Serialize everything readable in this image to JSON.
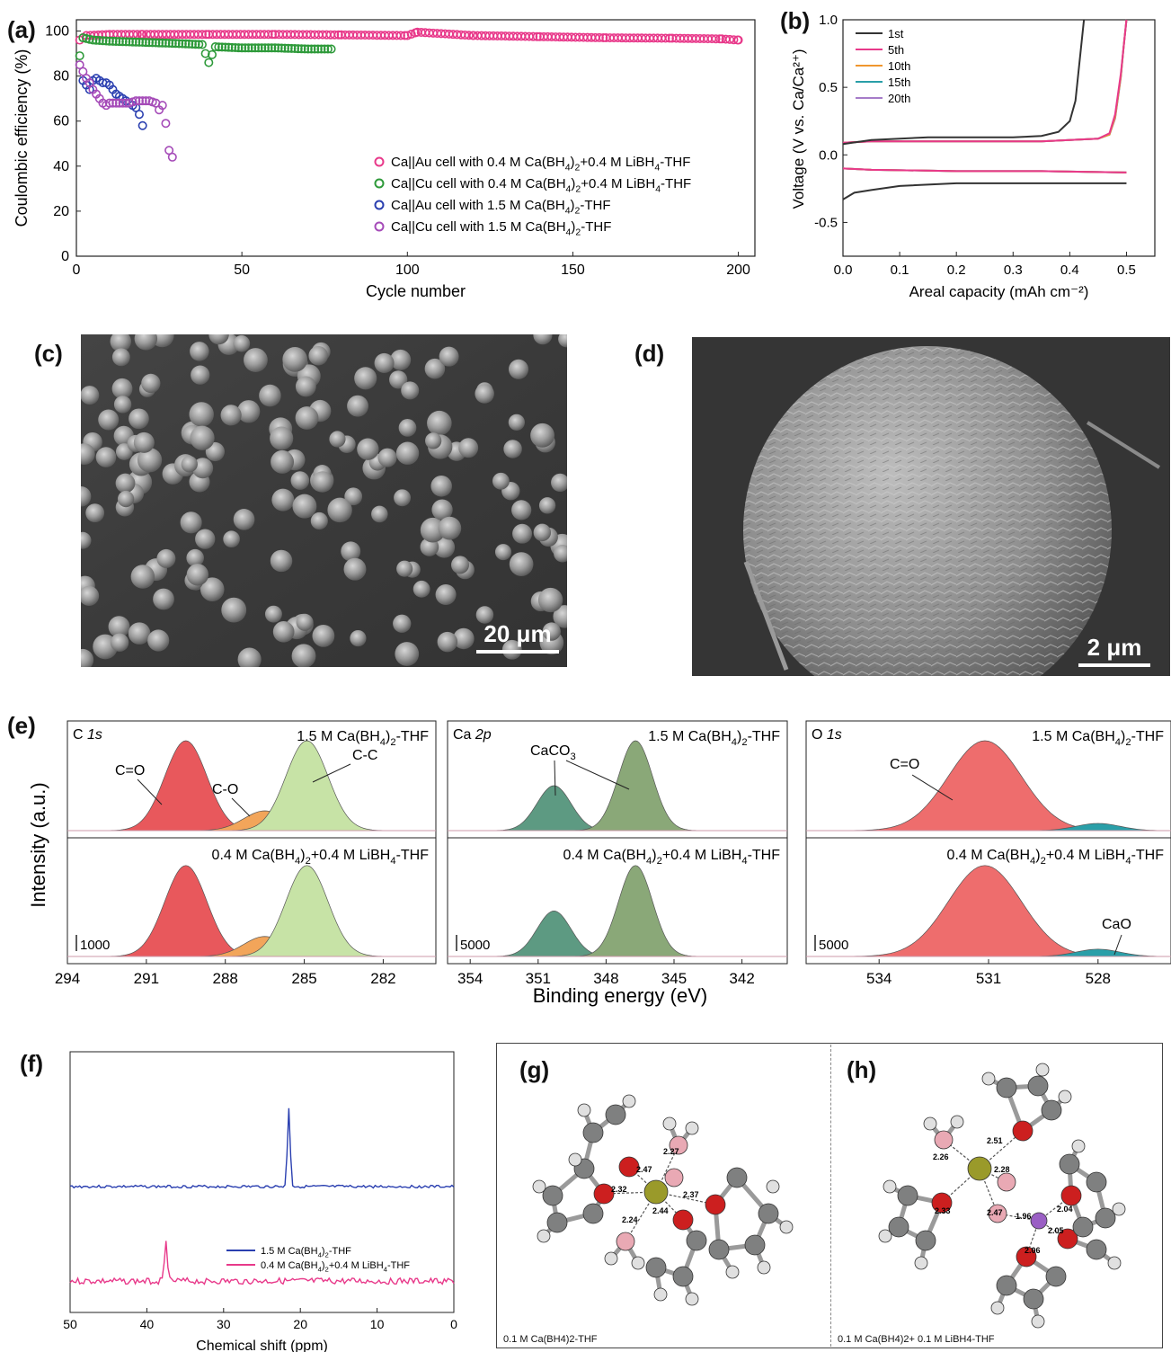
{
  "panels": {
    "a": "(a)",
    "b": "(b)",
    "c": "(c)",
    "d": "(d)",
    "e": "(e)",
    "f": "(f)",
    "g": "(g)",
    "h": "(h)"
  },
  "chart_data": [
    {
      "id": "a",
      "type": "scatter",
      "xlabel": "Cycle number",
      "ylabel": "Coulombic efficiency (%)",
      "xlim": [
        0,
        205
      ],
      "ylim": [
        0,
        105
      ],
      "xticks": [
        0,
        50,
        100,
        150,
        200
      ],
      "yticks": [
        0,
        20,
        40,
        60,
        80,
        100
      ],
      "legend_position": "lower-right",
      "series": [
        {
          "name": "Ca||Au cell with 0.4 M Ca(BH4)2+0.4 M LiBH4-THF",
          "color": "#e8398a",
          "x": [
            1,
            2,
            3,
            10,
            20,
            40,
            60,
            80,
            100,
            103,
            120,
            140,
            160,
            180,
            195,
            200
          ],
          "y": [
            96,
            97,
            98,
            98.5,
            98.5,
            98.5,
            98.5,
            98.3,
            98,
            99.5,
            98,
            97.5,
            97,
            96.8,
            96.5,
            96
          ]
        },
        {
          "name": "Ca||Cu cell with 0.4 M Ca(BH4)2+0.4 M LiBH4-THF",
          "color": "#2e9a3a",
          "x": [
            1,
            2,
            5,
            10,
            20,
            30,
            38,
            40,
            42,
            50,
            60,
            70,
            77
          ],
          "y": [
            89,
            97,
            96,
            95.5,
            95,
            94.5,
            94,
            86,
            93,
            92.5,
            92.5,
            92,
            92
          ]
        },
        {
          "name": "Ca||Au cell with 1.5 M Ca(BH4)2-THF",
          "color": "#2a3fb0",
          "x": [
            2,
            3,
            4,
            5,
            6,
            7,
            8,
            9,
            10,
            11,
            12,
            13,
            14,
            15,
            16,
            17,
            18,
            19,
            20
          ],
          "y": [
            78,
            76,
            74,
            78,
            79,
            78,
            77,
            77,
            76,
            74,
            72,
            71,
            70,
            69,
            68,
            67,
            66,
            63,
            58
          ]
        },
        {
          "name": "Ca||Cu cell with 1.5 M Ca(BH4)2-THF",
          "color": "#a54bb8",
          "x": [
            1,
            2,
            3,
            4,
            5,
            6,
            7,
            8,
            9,
            10,
            12,
            14,
            16,
            18,
            20,
            22,
            24,
            25,
            26,
            27,
            28,
            29
          ],
          "y": [
            85,
            82,
            79,
            77,
            74,
            72,
            70,
            68,
            67,
            68,
            68,
            68,
            68,
            69,
            69,
            69,
            68,
            65,
            67,
            59,
            47,
            44
          ]
        }
      ]
    },
    {
      "id": "b",
      "type": "line",
      "xlabel": "Areal capacity (mAh cm⁻²)",
      "ylabel": "Voltage (V vs. Ca/Ca²⁺)",
      "xlim": [
        0,
        0.55
      ],
      "ylim": [
        -0.75,
        1.0
      ],
      "xticks": [
        0.0,
        0.1,
        0.2,
        0.3,
        0.4,
        0.5
      ],
      "yticks": [
        -0.5,
        0.0,
        0.5,
        1.0
      ],
      "legend_position": "top-left",
      "series": [
        {
          "name": "1st",
          "color": "#333333",
          "charge_x": [
            0,
            0.05,
            0.15,
            0.25,
            0.3,
            0.35,
            0.38,
            0.4,
            0.41,
            0.415,
            0.42,
            0.425
          ],
          "charge_y": [
            0.08,
            0.11,
            0.13,
            0.13,
            0.13,
            0.14,
            0.17,
            0.25,
            0.4,
            0.6,
            0.8,
            1.0
          ],
          "discharge_x": [
            0,
            0.02,
            0.05,
            0.1,
            0.2,
            0.3,
            0.4,
            0.5
          ],
          "discharge_y": [
            -0.33,
            -0.28,
            -0.26,
            -0.23,
            -0.21,
            -0.21,
            -0.21,
            -0.21
          ]
        },
        {
          "name": "5th",
          "color": "#e8398a",
          "charge_x": [
            0,
            0.05,
            0.2,
            0.35,
            0.45,
            0.47,
            0.48,
            0.49,
            0.495,
            0.5
          ],
          "charge_y": [
            0.09,
            0.1,
            0.1,
            0.1,
            0.12,
            0.16,
            0.3,
            0.6,
            0.8,
            1.0
          ],
          "discharge_x": [
            0,
            0.05,
            0.2,
            0.35,
            0.5
          ],
          "discharge_y": [
            -0.1,
            -0.11,
            -0.12,
            -0.12,
            -0.13
          ]
        },
        {
          "name": "10th",
          "color": "#f0962e",
          "charge_x": [
            0,
            0.05,
            0.2,
            0.35,
            0.45,
            0.47,
            0.48,
            0.49,
            0.495,
            0.5
          ],
          "charge_y": [
            0.09,
            0.1,
            0.1,
            0.1,
            0.12,
            0.15,
            0.28,
            0.58,
            0.8,
            1.0
          ],
          "discharge_x": [
            0,
            0.05,
            0.2,
            0.35,
            0.5
          ],
          "discharge_y": [
            -0.1,
            -0.11,
            -0.12,
            -0.12,
            -0.13
          ]
        },
        {
          "name": "15th",
          "color": "#2a9fa8",
          "charge_x": [
            0,
            0.05,
            0.2,
            0.35,
            0.45,
            0.47,
            0.48,
            0.49,
            0.495,
            0.5
          ],
          "charge_y": [
            0.09,
            0.1,
            0.1,
            0.1,
            0.12,
            0.15,
            0.28,
            0.58,
            0.8,
            1.0
          ],
          "discharge_x": [
            0,
            0.05,
            0.2,
            0.35,
            0.5
          ],
          "discharge_y": [
            -0.1,
            -0.11,
            -0.12,
            -0.12,
            -0.13
          ]
        },
        {
          "name": "20th",
          "color": "#a67cc9",
          "charge_x": [
            0,
            0.05,
            0.2,
            0.35,
            0.45,
            0.47,
            0.48,
            0.49,
            0.495,
            0.5
          ],
          "charge_y": [
            0.09,
            0.1,
            0.1,
            0.1,
            0.12,
            0.15,
            0.27,
            0.57,
            0.8,
            1.0
          ],
          "discharge_x": [
            0,
            0.05,
            0.2,
            0.35,
            0.5
          ],
          "discharge_y": [
            -0.1,
            -0.11,
            -0.12,
            -0.12,
            -0.13
          ]
        }
      ]
    },
    {
      "id": "e",
      "type": "area",
      "ylabel": "Intensity (a.u.)",
      "xlabel": "Binding energy (eV)",
      "subplots": [
        {
          "element": "C",
          "orbital": "1s",
          "xlim": [
            294,
            280
          ],
          "xticks": [
            294,
            291,
            288,
            285,
            282
          ],
          "top_label": "1.5 M Ca(BH4)2-THF",
          "bottom_label": "0.4 M Ca(BH4)2+0.4 M LiBH4-THF",
          "scale_label": "1000",
          "annotations": [
            "C=O",
            "C-O",
            "C-C"
          ],
          "peaks": [
            {
              "label": "C=O",
              "center": 289.5,
              "color": "#e8585c"
            },
            {
              "label": "C-O",
              "center": 286.5,
              "color": "#f2a55a"
            },
            {
              "label": "C-C",
              "center": 284.9,
              "color": "#c7e3a6"
            }
          ]
        },
        {
          "element": "Ca",
          "orbital": "2p",
          "xlim": [
            355,
            340
          ],
          "xticks": [
            354,
            351,
            348,
            345,
            342
          ],
          "top_label": "1.5 M Ca(BH4)2-THF",
          "bottom_label": "0.4 M Ca(BH4)2+0.4 M LiBH4-THF",
          "scale_label": "5000",
          "annotations": [
            "CaCO3"
          ],
          "peaks": [
            {
              "label": "Ca 2p1/2",
              "center": 350.3,
              "color": "#5d9a82"
            },
            {
              "label": "Ca 2p3/2",
              "center": 346.7,
              "color": "#8aa878"
            }
          ]
        },
        {
          "element": "O",
          "orbital": "1s",
          "xlim": [
            536,
            526
          ],
          "xticks": [
            534,
            531,
            528
          ],
          "top_label": "1.5 M Ca(BH4)2-THF",
          "bottom_label": "0.4 M Ca(BH4)2+0.4 M LiBH4-THF",
          "scale_label": "5000",
          "annotations": [
            "C=O",
            "CaO"
          ],
          "peaks": [
            {
              "label": "C=O",
              "center": 531.1,
              "color": "#ee6d6d"
            },
            {
              "label": "CaO",
              "center": 528.0,
              "color": "#2a9fa8"
            }
          ]
        }
      ]
    },
    {
      "id": "f",
      "type": "line",
      "xlabel": "Chemical shift (ppm)",
      "xlim": [
        50,
        0
      ],
      "xticks": [
        50,
        40,
        30,
        20,
        10,
        0
      ],
      "legend_position": "bottom-right",
      "series": [
        {
          "name": "1.5 M Ca(BH4)2-THF",
          "color": "#2a3fb0",
          "peak_ppm": 21.5
        },
        {
          "name": "0.4 M Ca(BH4)2+0.4 M LiBH4-THF",
          "color": "#e8398a",
          "peak_ppm": 37.5
        }
      ]
    }
  ],
  "scale_bars": {
    "c": "20 μm",
    "d": "2 μm"
  },
  "molecules": {
    "g": {
      "caption": "0.1 M Ca(BH4)2-THF",
      "bond_labels": [
        "2.27",
        "2.47",
        "2.32",
        "2.37",
        "2.44",
        "2.24"
      ]
    },
    "h": {
      "caption": "0.1 M Ca(BH4)2+ 0.1 M LiBH4-THF",
      "bond_labels": [
        "2.26",
        "2.51",
        "2.28",
        "2.33",
        "2.47",
        "1.96",
        "2.04",
        "2.05",
        "2.06"
      ]
    }
  },
  "colors": {
    "ca_atom": "#9a9a2a",
    "o_atom": "#cc1f1f",
    "b_atom": "#e9a9b4",
    "c_atom": "#7f8080",
    "h_atom": "#e0e0e0",
    "li_atom": "#9a5fc4"
  }
}
